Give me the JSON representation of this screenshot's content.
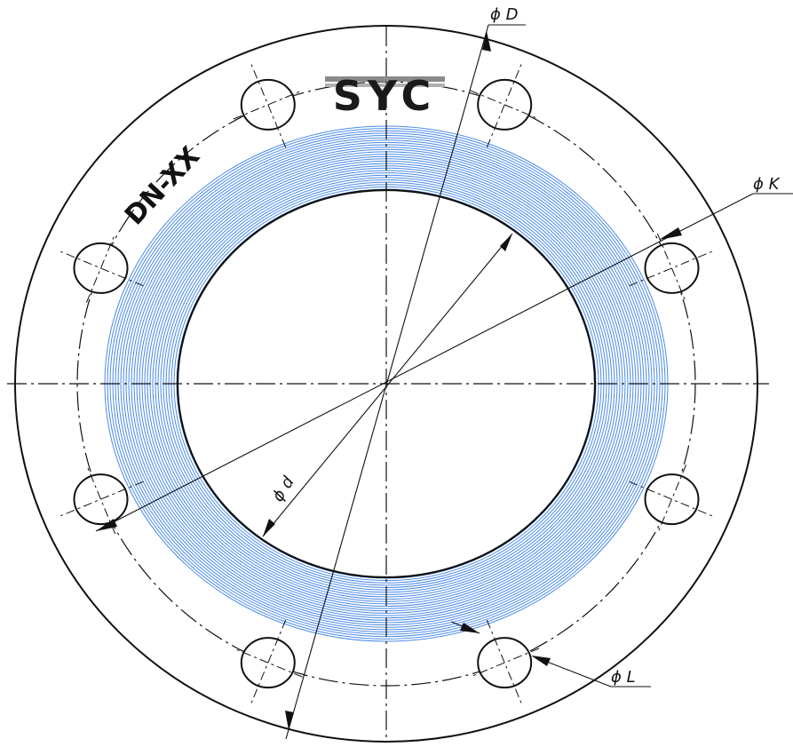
{
  "drawing": {
    "logo_text": "SYC",
    "size_label": "DN-XX",
    "dimensions": {
      "outer_diameter": "ϕ D",
      "bolt_circle": "ϕ K",
      "inner_diameter": "ϕ d",
      "bolt_hole": "ϕ L"
    },
    "bolt_hole_count": 8,
    "colors": {
      "line": "#111111",
      "winding": "#4a8ae8"
    }
  }
}
